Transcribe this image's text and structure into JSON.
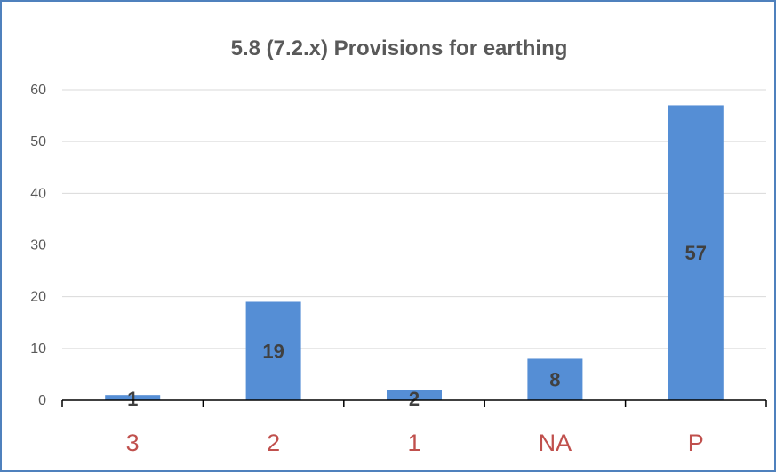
{
  "chart_data": {
    "type": "bar",
    "title": "5.8 (7.2.x) Provisions for earthing",
    "categories": [
      "3",
      "2",
      "1",
      "NA",
      "P"
    ],
    "values": [
      1,
      19,
      2,
      8,
      57
    ],
    "data_labels": [
      "1",
      "19",
      "2",
      "8",
      "57"
    ],
    "ylim": [
      0,
      60
    ],
    "yticks": [
      "0",
      "10",
      "20",
      "30",
      "40",
      "50",
      "60"
    ],
    "xlabel": "",
    "ylabel": "",
    "grid": true,
    "legend": "none",
    "colors": {
      "bar": "#558ed5",
      "category_label": "#c0504d",
      "data_label": "#404040",
      "gridline": "#d9d9d9",
      "frame": "#4f81bd"
    }
  }
}
